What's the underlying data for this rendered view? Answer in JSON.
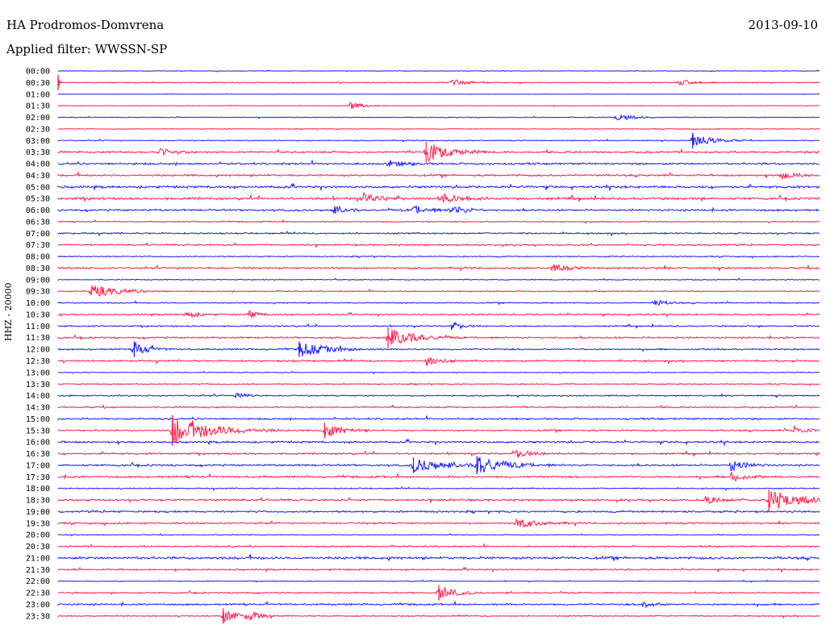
{
  "header": {
    "station": "HA Prodromos-Domvrena",
    "date": "2013-09-10",
    "filter": "Applied filter: WWSSN-SP",
    "axis_label": "HHZ - 20000"
  },
  "colors": {
    "blue": "#1a1aff",
    "red": "#ff1a4a"
  },
  "chart_data": {
    "type": "line",
    "title": "HA Prodromos-Domvrena",
    "subtitle": "Applied filter: WWSSN-SP",
    "ylabel": "HHZ - 20000",
    "rows": [
      "00:00",
      "00:30",
      "01:00",
      "01:30",
      "02:00",
      "02:30",
      "03:00",
      "03:30",
      "04:00",
      "04:30",
      "05:00",
      "05:30",
      "06:00",
      "06:30",
      "07:00",
      "07:30",
      "08:00",
      "08:30",
      "09:00",
      "09:30",
      "10:00",
      "10:30",
      "11:00",
      "11:30",
      "12:00",
      "12:30",
      "13:00",
      "13:30",
      "14:00",
      "14:30",
      "15:00",
      "15:30",
      "16:00",
      "16:30",
      "17:00",
      "17:30",
      "18:00",
      "18:30",
      "19:00",
      "19:30",
      "20:00",
      "20:30",
      "21:00",
      "21:30",
      "22:00",
      "22:30",
      "23:00",
      "23:30"
    ],
    "row_minutes": 30,
    "noise": [
      0.3,
      0.5,
      0.2,
      0.3,
      0.4,
      0.4,
      0.5,
      1.0,
      1.0,
      1.0,
      1.2,
      1.2,
      1.0,
      0.6,
      0.8,
      0.8,
      0.6,
      1.0,
      0.5,
      0.6,
      0.6,
      0.7,
      0.7,
      0.9,
      0.8,
      0.9,
      0.4,
      0.6,
      0.7,
      0.8,
      0.9,
      0.8,
      1.0,
      0.9,
      1.0,
      1.0,
      0.6,
      1.0,
      1.0,
      0.9,
      0.4,
      0.7,
      1.3,
      0.8,
      0.4,
      0.7,
      0.9,
      0.6
    ],
    "events": [
      {
        "row": 1,
        "t": 15.5,
        "amp": 1.5,
        "dur": 0.6
      },
      {
        "row": 1,
        "t": 24.5,
        "amp": 1.2,
        "dur": 0.5
      },
      {
        "row": 1,
        "t": 0.0,
        "amp": 3.0,
        "dur": 0.05
      },
      {
        "row": 3,
        "t": 11.5,
        "amp": 1.5,
        "dur": 0.5
      },
      {
        "row": 4,
        "t": 22.0,
        "amp": 1.5,
        "dur": 0.6
      },
      {
        "row": 6,
        "t": 25.0,
        "amp": 3.0,
        "dur": 0.7
      },
      {
        "row": 7,
        "t": 14.5,
        "amp": 4.0,
        "dur": 0.8
      },
      {
        "row": 7,
        "t": 4.0,
        "amp": 1.5,
        "dur": 0.5
      },
      {
        "row": 8,
        "t": 13.0,
        "amp": 1.5,
        "dur": 0.6
      },
      {
        "row": 9,
        "t": 28.5,
        "amp": 1.5,
        "dur": 0.5
      },
      {
        "row": 11,
        "t": 12.0,
        "amp": 2.0,
        "dur": 0.6
      },
      {
        "row": 11,
        "t": 15.0,
        "amp": 2.0,
        "dur": 0.8
      },
      {
        "row": 12,
        "t": 10.8,
        "amp": 1.8,
        "dur": 0.4
      },
      {
        "row": 12,
        "t": 14.0,
        "amp": 2.0,
        "dur": 0.5
      },
      {
        "row": 12,
        "t": 15.5,
        "amp": 2.2,
        "dur": 0.5
      },
      {
        "row": 17,
        "t": 19.5,
        "amp": 1.5,
        "dur": 0.5
      },
      {
        "row": 19,
        "t": 1.3,
        "amp": 2.5,
        "dur": 1.0
      },
      {
        "row": 20,
        "t": 23.5,
        "amp": 1.8,
        "dur": 0.4
      },
      {
        "row": 21,
        "t": 5.0,
        "amp": 1.5,
        "dur": 0.5
      },
      {
        "row": 21,
        "t": 7.5,
        "amp": 1.5,
        "dur": 0.4
      },
      {
        "row": 22,
        "t": 15.5,
        "amp": 1.8,
        "dur": 0.4
      },
      {
        "row": 23,
        "t": 13.0,
        "amp": 4.0,
        "dur": 0.9
      },
      {
        "row": 24,
        "t": 3.0,
        "amp": 3.0,
        "dur": 0.5
      },
      {
        "row": 24,
        "t": 9.5,
        "amp": 3.0,
        "dur": 1.0
      },
      {
        "row": 25,
        "t": 14.5,
        "amp": 2.0,
        "dur": 0.5
      },
      {
        "row": 28,
        "t": 7.0,
        "amp": 1.5,
        "dur": 0.4
      },
      {
        "row": 31,
        "t": 4.5,
        "amp": 6.0,
        "dur": 1.4
      },
      {
        "row": 31,
        "t": 10.5,
        "amp": 3.0,
        "dur": 0.6
      },
      {
        "row": 31,
        "t": 29.0,
        "amp": 2.0,
        "dur": 0.4
      },
      {
        "row": 33,
        "t": 18.0,
        "amp": 1.8,
        "dur": 0.6
      },
      {
        "row": 34,
        "t": 14.0,
        "amp": 3.0,
        "dur": 1.0
      },
      {
        "row": 34,
        "t": 16.5,
        "amp": 3.5,
        "dur": 1.0
      },
      {
        "row": 34,
        "t": 26.5,
        "amp": 2.5,
        "dur": 0.5
      },
      {
        "row": 35,
        "t": 26.5,
        "amp": 2.0,
        "dur": 0.5
      },
      {
        "row": 37,
        "t": 25.5,
        "amp": 1.5,
        "dur": 0.6
      },
      {
        "row": 37,
        "t": 28.0,
        "amp": 4.0,
        "dur": 1.2
      },
      {
        "row": 39,
        "t": 18.0,
        "amp": 2.0,
        "dur": 0.8
      },
      {
        "row": 45,
        "t": 15.0,
        "amp": 3.0,
        "dur": 0.6
      },
      {
        "row": 46,
        "t": 23.0,
        "amp": 1.5,
        "dur": 0.4
      },
      {
        "row": 47,
        "t": 6.5,
        "amp": 3.0,
        "dur": 0.6
      },
      {
        "row": 47,
        "t": 7.5,
        "amp": 2.0,
        "dur": 0.4
      }
    ]
  }
}
